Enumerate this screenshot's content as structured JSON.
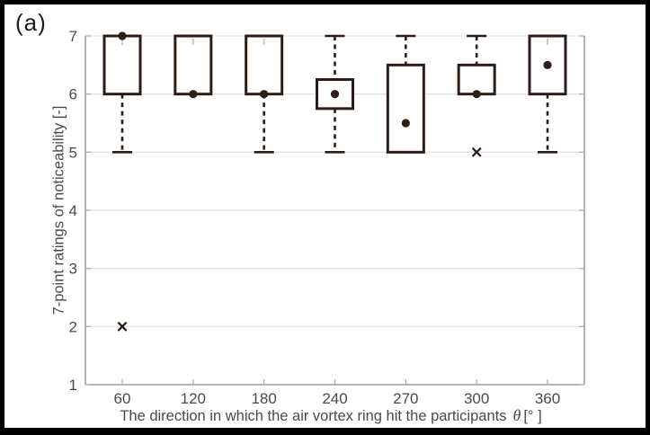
{
  "figure": {
    "panel_label": "(a)"
  },
  "chart_data": {
    "type": "boxplot",
    "title": "",
    "xlabel_text": "The direction in which the air vortex ring hit the participants",
    "xlabel_symbol": "θ",
    "xlabel_units": "[° ]",
    "ylabel": "7-point ratings of noticeability [-]",
    "categories": [
      "60",
      "120",
      "180",
      "240",
      "270",
      "300",
      "360"
    ],
    "ylim": [
      1,
      7
    ],
    "yticks": [
      1,
      2,
      3,
      4,
      5,
      6,
      7
    ],
    "grid": "horizontal-light",
    "legend": "none",
    "marker_meaning": {
      "dot": "median rating",
      "x": "outlier"
    },
    "boxes": [
      {
        "category": "60",
        "whisker_low": 5,
        "q1": 6,
        "q3": 7,
        "whisker_high": 7,
        "median_dot": 7,
        "outliers": [
          2
        ]
      },
      {
        "category": "120",
        "whisker_low": 6,
        "q1": 6,
        "q3": 7,
        "whisker_high": 7,
        "median_dot": 6,
        "outliers": []
      },
      {
        "category": "180",
        "whisker_low": 5,
        "q1": 6,
        "q3": 7,
        "whisker_high": 7,
        "median_dot": 6,
        "outliers": []
      },
      {
        "category": "240",
        "whisker_low": 5,
        "q1": 5.75,
        "q3": 6.25,
        "whisker_high": 7,
        "median_dot": 6,
        "outliers": []
      },
      {
        "category": "270",
        "whisker_low": 5,
        "q1": 5,
        "q3": 6.5,
        "whisker_high": 7,
        "median_dot": 5.5,
        "outliers": []
      },
      {
        "category": "300",
        "whisker_low": 6,
        "q1": 6,
        "q3": 6.5,
        "whisker_high": 7,
        "median_dot": 6,
        "outliers": [
          5
        ]
      },
      {
        "category": "360",
        "whisker_low": 5,
        "q1": 6,
        "q3": 7,
        "whisker_high": 7,
        "median_dot": 6.5,
        "outliers": []
      }
    ],
    "colors": {
      "box_line": "#2b1d17",
      "grid": "#e4e2e1",
      "axis": "#8b8989",
      "tick": "#b3b1b0",
      "tick_label": "#4d4948",
      "stub": "#cbc9c8",
      "background": "#ffffff",
      "frame": "#000000"
    }
  }
}
